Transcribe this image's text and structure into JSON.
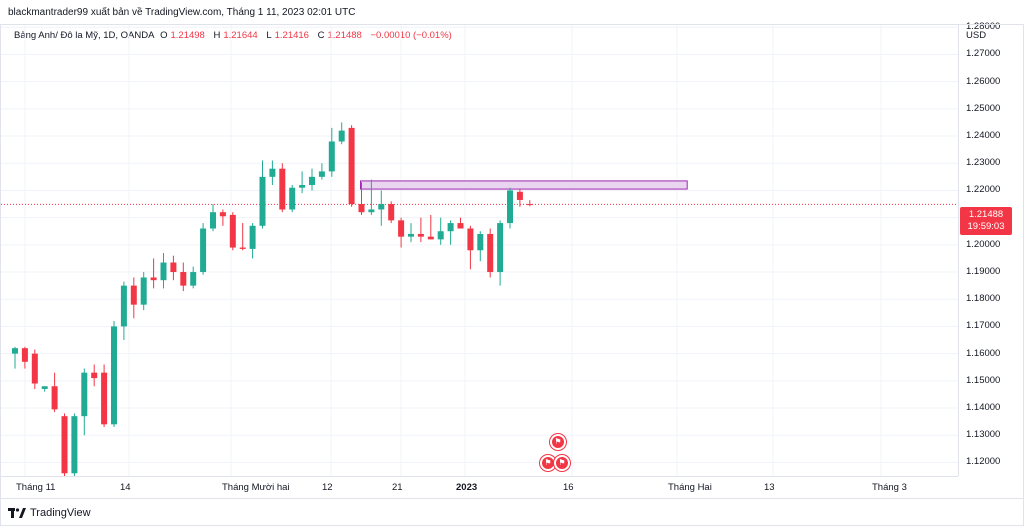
{
  "header": {
    "published": "blackmantrader99 xuất bản về TradingView.com, Tháng 1 11, 2023 02:01 UTC"
  },
  "legend": {
    "symbol": "Bảng Anh/ Đô la Mỹ, 1D, OANDA",
    "open_label": "O",
    "open": "1.21498",
    "high_label": "H",
    "high": "1.21644",
    "low_label": "L",
    "low": "1.21416",
    "close_label": "C",
    "close": "1.21488",
    "change": "−0.00010 (−0.01%)"
  },
  "price_axis": {
    "currency": "USD",
    "ticks": [
      "1.28000",
      "1.27000",
      "1.26000",
      "1.25000",
      "1.24000",
      "1.23000",
      "1.22000",
      "1.21000",
      "1.20000",
      "1.19000",
      "1.18000",
      "1.17000",
      "1.16000",
      "1.15000",
      "1.14000",
      "1.13000",
      "1.12000"
    ],
    "current_price": "1.21488",
    "countdown": "19:59:03"
  },
  "time_axis": {
    "ticks": [
      {
        "label": "Tháng 11",
        "bold": false
      },
      {
        "label": "14",
        "bold": false
      },
      {
        "label": "Tháng Mười hai",
        "bold": false
      },
      {
        "label": "12",
        "bold": false
      },
      {
        "label": "21",
        "bold": false
      },
      {
        "label": "2023",
        "bold": true
      },
      {
        "label": "16",
        "bold": false
      },
      {
        "label": "Tháng Hai",
        "bold": false
      },
      {
        "label": "13",
        "bold": false
      },
      {
        "label": "Tháng 3",
        "bold": false
      }
    ]
  },
  "footer": {
    "brand": "TradingView"
  },
  "colors": {
    "up": "#22ab94",
    "down": "#f23645",
    "zone_fill": "#e9d5f0",
    "zone_border": "#9c27b0",
    "grid": "#f0f3fa"
  },
  "icons": {
    "events": [
      "uk-flag-icon",
      "uk-us-flags-icon"
    ]
  },
  "chart_data": {
    "type": "candlestick",
    "symbol": "Bảng Anh/ Đô la Mỹ",
    "interval": "1D",
    "ylim": [
      1.115,
      1.283
    ],
    "candles": [
      {
        "o": 1.16,
        "h": 1.1625,
        "l": 1.1545,
        "c": 1.162
      },
      {
        "o": 1.162,
        "h": 1.1625,
        "l": 1.1545,
        "c": 1.157
      },
      {
        "o": 1.16,
        "h": 1.1615,
        "l": 1.147,
        "c": 1.149
      },
      {
        "o": 1.147,
        "h": 1.148,
        "l": 1.146,
        "c": 1.148
      },
      {
        "o": 1.148,
        "h": 1.153,
        "l": 1.1385,
        "c": 1.1395
      },
      {
        "o": 1.137,
        "h": 1.138,
        "l": 1.114,
        "c": 1.116
      },
      {
        "o": 1.116,
        "h": 1.138,
        "l": 1.114,
        "c": 1.137
      },
      {
        "o": 1.137,
        "h": 1.1545,
        "l": 1.13,
        "c": 1.153
      },
      {
        "o": 1.153,
        "h": 1.156,
        "l": 1.148,
        "c": 1.151
      },
      {
        "o": 1.153,
        "h": 1.156,
        "l": 1.133,
        "c": 1.134
      },
      {
        "o": 1.134,
        "h": 1.172,
        "l": 1.133,
        "c": 1.17
      },
      {
        "o": 1.17,
        "h": 1.1865,
        "l": 1.165,
        "c": 1.185
      },
      {
        "o": 1.185,
        "h": 1.188,
        "l": 1.173,
        "c": 1.178
      },
      {
        "o": 1.178,
        "h": 1.19,
        "l": 1.176,
        "c": 1.188
      },
      {
        "o": 1.188,
        "h": 1.195,
        "l": 1.184,
        "c": 1.187
      },
      {
        "o": 1.187,
        "h": 1.197,
        "l": 1.184,
        "c": 1.1935
      },
      {
        "o": 1.1935,
        "h": 1.196,
        "l": 1.187,
        "c": 1.19
      },
      {
        "o": 1.19,
        "h": 1.1935,
        "l": 1.183,
        "c": 1.185
      },
      {
        "o": 1.185,
        "h": 1.192,
        "l": 1.184,
        "c": 1.19
      },
      {
        "o": 1.19,
        "h": 1.208,
        "l": 1.189,
        "c": 1.206
      },
      {
        "o": 1.206,
        "h": 1.215,
        "l": 1.205,
        "c": 1.212
      },
      {
        "o": 1.212,
        "h": 1.213,
        "l": 1.207,
        "c": 1.2105
      },
      {
        "o": 1.211,
        "h": 1.212,
        "l": 1.198,
        "c": 1.199
      },
      {
        "o": 1.199,
        "h": 1.208,
        "l": 1.198,
        "c": 1.1985
      },
      {
        "o": 1.1985,
        "h": 1.208,
        "l": 1.195,
        "c": 1.207
      },
      {
        "o": 1.207,
        "h": 1.231,
        "l": 1.206,
        "c": 1.225
      },
      {
        "o": 1.225,
        "h": 1.231,
        "l": 1.222,
        "c": 1.228
      },
      {
        "o": 1.228,
        "h": 1.23,
        "l": 1.212,
        "c": 1.213
      },
      {
        "o": 1.213,
        "h": 1.222,
        "l": 1.212,
        "c": 1.221
      },
      {
        "o": 1.221,
        "h": 1.227,
        "l": 1.219,
        "c": 1.222
      },
      {
        "o": 1.222,
        "h": 1.228,
        "l": 1.22,
        "c": 1.225
      },
      {
        "o": 1.225,
        "h": 1.23,
        "l": 1.224,
        "c": 1.227
      },
      {
        "o": 1.227,
        "h": 1.243,
        "l": 1.225,
        "c": 1.238
      },
      {
        "o": 1.238,
        "h": 1.245,
        "l": 1.237,
        "c": 1.242
      },
      {
        "o": 1.243,
        "h": 1.244,
        "l": 1.214,
        "c": 1.215
      },
      {
        "o": 1.215,
        "h": 1.223,
        "l": 1.211,
        "c": 1.212
      },
      {
        "o": 1.212,
        "h": 1.224,
        "l": 1.211,
        "c": 1.213
      },
      {
        "o": 1.213,
        "h": 1.22,
        "l": 1.207,
        "c": 1.215
      },
      {
        "o": 1.215,
        "h": 1.216,
        "l": 1.208,
        "c": 1.209
      },
      {
        "o": 1.209,
        "h": 1.21,
        "l": 1.199,
        "c": 1.203
      },
      {
        "o": 1.203,
        "h": 1.208,
        "l": 1.201,
        "c": 1.204
      },
      {
        "o": 1.204,
        "h": 1.21,
        "l": 1.201,
        "c": 1.203
      },
      {
        "o": 1.203,
        "h": 1.211,
        "l": 1.202,
        "c": 1.202
      },
      {
        "o": 1.202,
        "h": 1.21,
        "l": 1.2,
        "c": 1.205
      },
      {
        "o": 1.205,
        "h": 1.209,
        "l": 1.2,
        "c": 1.208
      },
      {
        "o": 1.208,
        "h": 1.21,
        "l": 1.206,
        "c": 1.206
      },
      {
        "o": 1.206,
        "h": 1.207,
        "l": 1.191,
        "c": 1.198
      },
      {
        "o": 1.198,
        "h": 1.205,
        "l": 1.194,
        "c": 1.204
      },
      {
        "o": 1.204,
        "h": 1.206,
        "l": 1.188,
        "c": 1.19
      },
      {
        "o": 1.19,
        "h": 1.209,
        "l": 1.185,
        "c": 1.208
      },
      {
        "o": 1.208,
        "h": 1.221,
        "l": 1.206,
        "c": 1.22
      },
      {
        "o": 1.2195,
        "h": 1.2205,
        "l": 1.214,
        "c": 1.2165
      },
      {
        "o": 1.21498,
        "h": 1.21644,
        "l": 1.21416,
        "c": 1.21488
      }
    ],
    "zone": {
      "top": 1.2235,
      "bottom": 1.2205,
      "from_index": 35,
      "to_index": 68
    }
  }
}
